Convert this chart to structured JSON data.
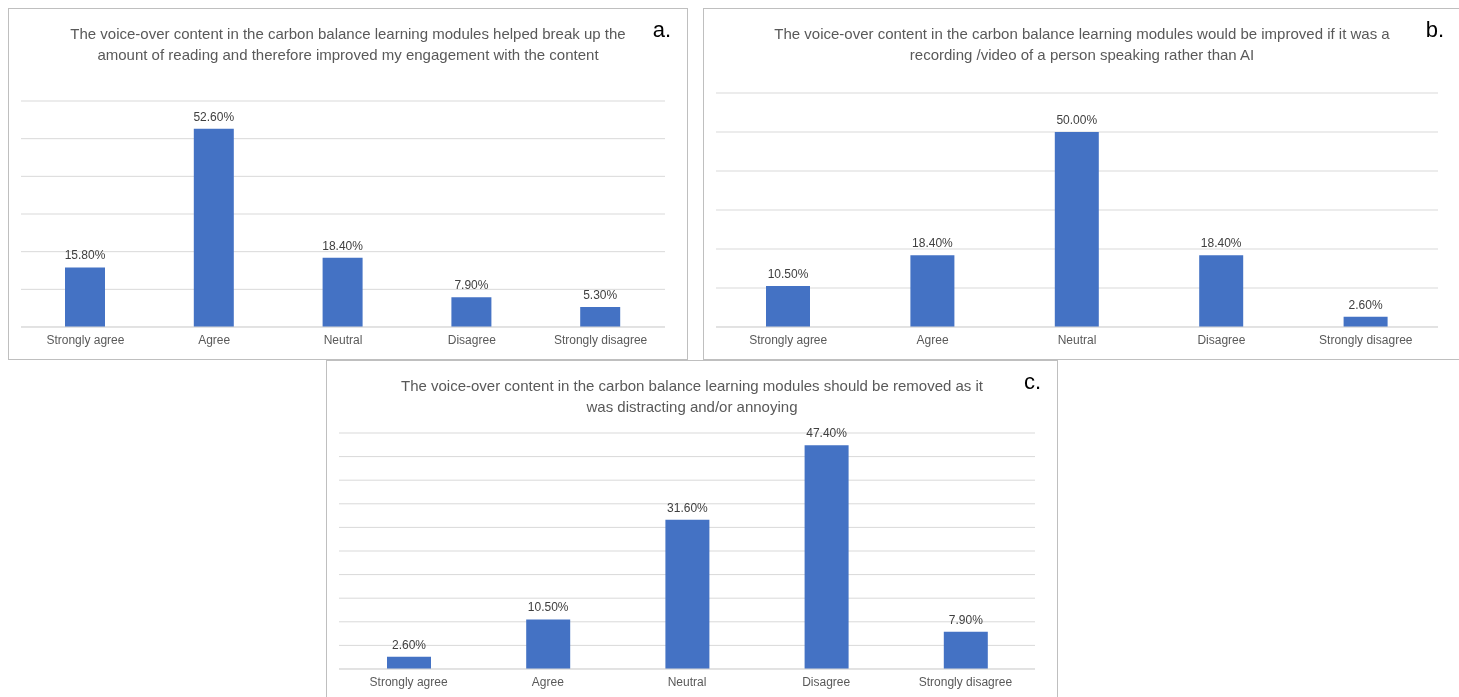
{
  "chart_data": [
    {
      "type": "bar",
      "title": "The voice-over content in the carbon balance learning modules helped break up the amount of reading and therefore improved my engagement with the content",
      "annotations": [
        "a."
      ],
      "categories": [
        "Strongly agree",
        "Agree",
        "Neutral",
        "Disagree",
        "Strongly disagree"
      ],
      "values": [
        15.8,
        52.6,
        18.4,
        7.9,
        5.3
      ],
      "value_labels": [
        "15.80%",
        "52.60%",
        "18.40%",
        "7.90%",
        "5.30%"
      ],
      "color": "#4472c4",
      "ylim": [
        0,
        60
      ],
      "yticks": [
        {
          "value": 0,
          "label": null
        },
        {
          "value": 10,
          "label": null
        },
        {
          "value": 20,
          "label": null
        },
        {
          "value": 30,
          "label": null
        },
        {
          "value": 40,
          "label": null
        },
        {
          "value": 50,
          "label": null
        },
        {
          "value": 60,
          "label": null
        }
      ],
      "grid": "y",
      "tick_labels": "x"
    },
    {
      "type": "bar",
      "title": "The voice-over content in the carbon balance learning modules would be improved if it was a recording /video of a person speaking rather than AI",
      "annotations": [
        "b."
      ],
      "categories": [
        "Strongly agree",
        "Agree",
        "Neutral",
        "Disagree",
        "Strongly disagree"
      ],
      "values": [
        10.5,
        18.4,
        50.0,
        18.4,
        2.6
      ],
      "value_labels": [
        "10.50%",
        "18.40%",
        "50.00%",
        "18.40%",
        "2.60%"
      ],
      "color": "#4472c4",
      "ylim": [
        0,
        60
      ],
      "yticks": [
        {
          "value": 0,
          "label": null
        },
        {
          "value": 10,
          "label": null
        },
        {
          "value": 20,
          "label": null
        },
        {
          "value": 30,
          "label": null
        },
        {
          "value": 40,
          "label": null
        },
        {
          "value": 50,
          "label": null
        },
        {
          "value": 60,
          "label": null
        }
      ],
      "grid": "y",
      "tick_labels": "x"
    },
    {
      "type": "bar",
      "title": "The voice-over content in the carbon balance learning modules should be removed as it was distracting and/or annoying",
      "annotations": [
        "c."
      ],
      "categories": [
        "Strongly agree",
        "Agree",
        "Neutral",
        "Disagree",
        "Strongly disagree"
      ],
      "values": [
        2.6,
        10.5,
        31.6,
        47.4,
        7.9
      ],
      "value_labels": [
        "2.60%",
        "10.50%",
        "31.60%",
        "47.40%",
        "7.90%"
      ],
      "color": "#4472c4",
      "ylim": [
        0,
        50
      ],
      "yticks": [
        {
          "value": 0,
          "label": null
        },
        {
          "value": 5,
          "label": null
        },
        {
          "value": 10,
          "label": null
        },
        {
          "value": 15,
          "label": null
        },
        {
          "value": 20,
          "label": null
        },
        {
          "value": 25,
          "label": null
        },
        {
          "value": 30,
          "label": null
        },
        {
          "value": 35,
          "label": null
        },
        {
          "value": 40,
          "label": null
        },
        {
          "value": 45,
          "label": null
        },
        {
          "value": 50,
          "label": null
        }
      ],
      "grid": "y",
      "tick_labels": "x"
    }
  ]
}
